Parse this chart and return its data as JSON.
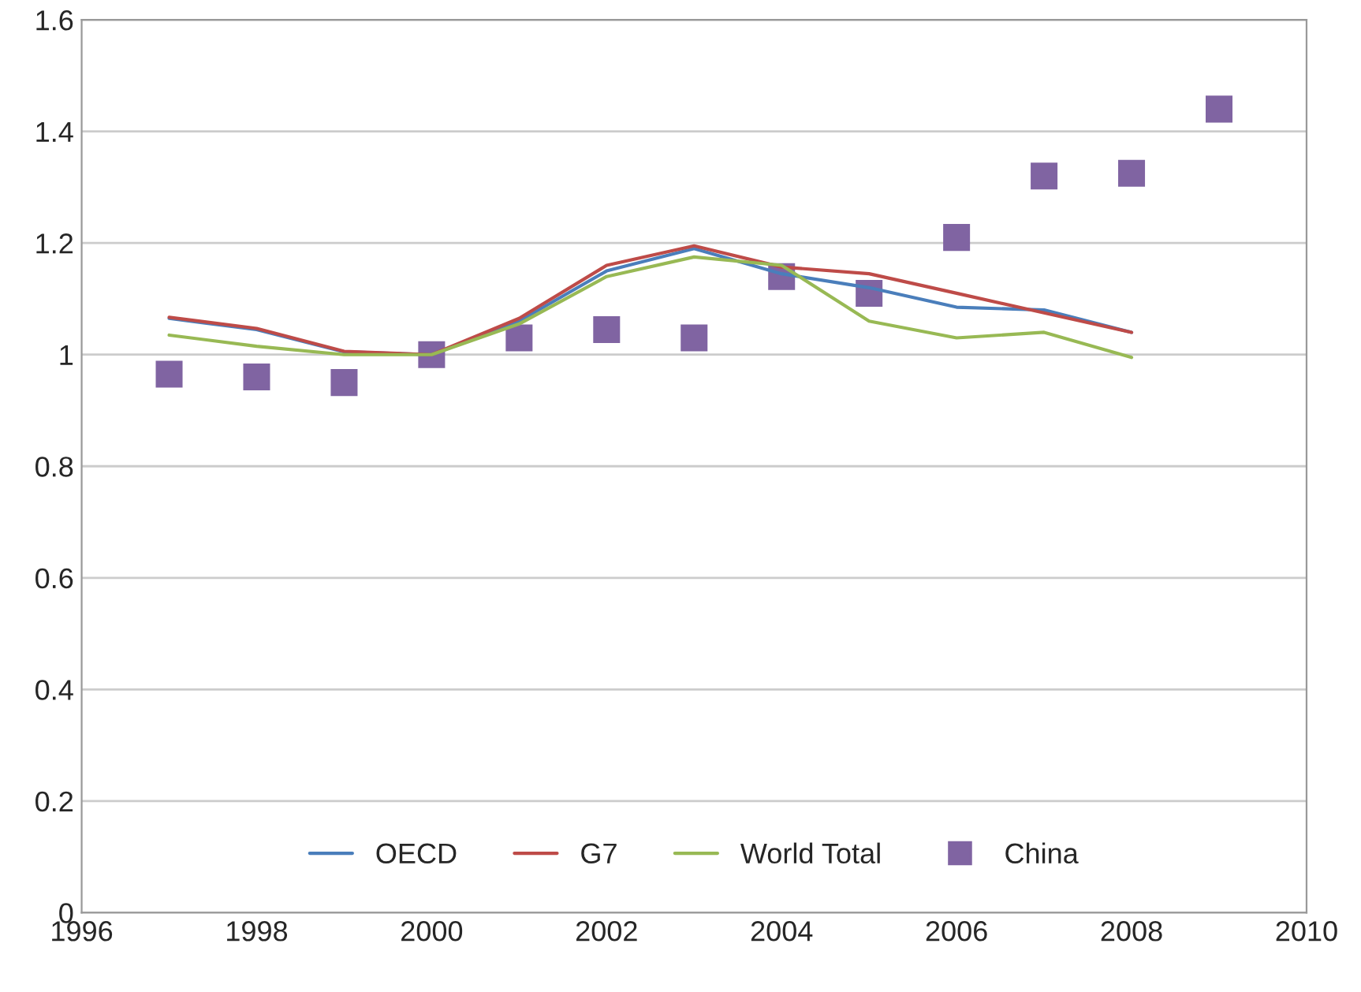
{
  "chart_data": {
    "type": "line",
    "x": [
      1997,
      1998,
      1999,
      2000,
      2001,
      2002,
      2003,
      2004,
      2005,
      2006,
      2007,
      2008
    ],
    "series": [
      {
        "name": "OECD",
        "color": "#4a7ebb",
        "values": [
          1.065,
          1.045,
          1.005,
          1.0,
          1.06,
          1.15,
          1.19,
          1.145,
          1.12,
          1.085,
          1.08,
          1.04
        ]
      },
      {
        "name": "G7",
        "color": "#be4b48",
        "values": [
          1.067,
          1.047,
          1.006,
          1.0,
          1.065,
          1.16,
          1.195,
          1.157,
          1.145,
          1.11,
          1.075,
          1.04
        ]
      },
      {
        "name": "World Total",
        "color": "#98b954",
        "values": [
          1.035,
          1.015,
          1.0,
          1.0,
          1.055,
          1.14,
          1.175,
          1.16,
          1.06,
          1.03,
          1.04,
          0.995
        ]
      },
      {
        "name": "China",
        "type": "scatter",
        "marker": "square",
        "color": "#8064a2",
        "x": [
          1997,
          1998,
          1999,
          2000,
          2001,
          2002,
          2003,
          2004,
          2005,
          2006,
          2007,
          2008,
          2009
        ],
        "values": [
          0.965,
          0.96,
          0.95,
          1.0,
          1.03,
          1.045,
          1.03,
          1.14,
          1.11,
          1.21,
          1.32,
          1.325,
          1.44
        ]
      }
    ],
    "xlim": [
      1996,
      2010
    ],
    "xticks": [
      1996,
      1998,
      2000,
      2002,
      2004,
      2006,
      2008,
      2010
    ],
    "ylim": [
      0,
      1.6
    ],
    "yticks": [
      0,
      0.2,
      0.4,
      0.6,
      0.8,
      1,
      1.2,
      1.4,
      1.6
    ],
    "grid": "y",
    "legend": "bottom"
  }
}
